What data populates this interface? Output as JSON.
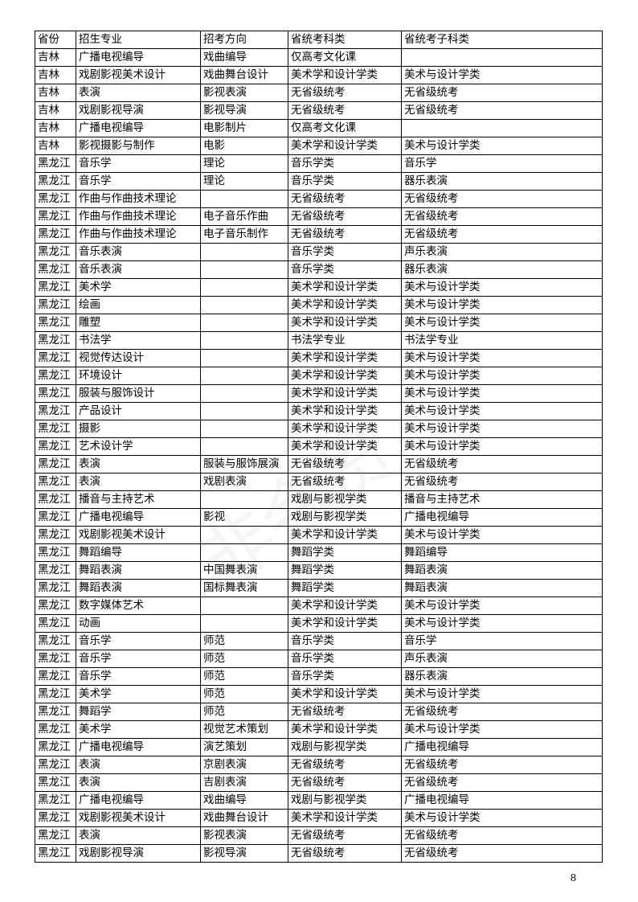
{
  "header": [
    "省份",
    "招生专业",
    "招考方向",
    "省统考科类",
    "省统考子科类"
  ],
  "rows": [
    [
      "吉林",
      "广播电视编导",
      "戏曲编导",
      "仅高考文化课",
      ""
    ],
    [
      "吉林",
      "戏剧影视美术设计",
      "戏曲舞台设计",
      "美术学和设计学类",
      "美术与设计学类"
    ],
    [
      "吉林",
      "表演",
      "影视表演",
      "无省级统考",
      "无省级统考"
    ],
    [
      "吉林",
      "戏剧影视导演",
      "影视导演",
      "无省级统考",
      "无省级统考"
    ],
    [
      "吉林",
      "广播电视编导",
      "电影制片",
      "仅高考文化课",
      ""
    ],
    [
      "吉林",
      "影视摄影与制作",
      "电影",
      "美术学和设计学类",
      "美术与设计学类"
    ],
    [
      "黑龙江",
      "音乐学",
      "理论",
      "音乐学类",
      "音乐学"
    ],
    [
      "黑龙江",
      "音乐学",
      "理论",
      "音乐学类",
      "器乐表演"
    ],
    [
      "黑龙江",
      "作曲与作曲技术理论",
      "",
      "无省级统考",
      "无省级统考"
    ],
    [
      "黑龙江",
      "作曲与作曲技术理论",
      "电子音乐作曲",
      "无省级统考",
      "无省级统考"
    ],
    [
      "黑龙江",
      "作曲与作曲技术理论",
      "电子音乐制作",
      "无省级统考",
      "无省级统考"
    ],
    [
      "黑龙江",
      "音乐表演",
      "",
      "音乐学类",
      "声乐表演"
    ],
    [
      "黑龙江",
      "音乐表演",
      "",
      "音乐学类",
      "器乐表演"
    ],
    [
      "黑龙江",
      "美术学",
      "",
      "美术学和设计学类",
      "美术与设计学类"
    ],
    [
      "黑龙江",
      "绘画",
      "",
      "美术学和设计学类",
      "美术与设计学类"
    ],
    [
      "黑龙江",
      "雕塑",
      "",
      "美术学和设计学类",
      "美术与设计学类"
    ],
    [
      "黑龙江",
      "书法学",
      "",
      "书法学专业",
      "书法学专业"
    ],
    [
      "黑龙江",
      "视觉传达设计",
      "",
      "美术学和设计学类",
      "美术与设计学类"
    ],
    [
      "黑龙江",
      "环境设计",
      "",
      "美术学和设计学类",
      "美术与设计学类"
    ],
    [
      "黑龙江",
      "服装与服饰设计",
      "",
      "美术学和设计学类",
      "美术与设计学类"
    ],
    [
      "黑龙江",
      "产品设计",
      "",
      "美术学和设计学类",
      "美术与设计学类"
    ],
    [
      "黑龙江",
      "摄影",
      "",
      "美术学和设计学类",
      "美术与设计学类"
    ],
    [
      "黑龙江",
      "艺术设计学",
      "",
      "美术学和设计学类",
      "美术与设计学类"
    ],
    [
      "黑龙江",
      "表演",
      "服装与服饰展演",
      "无省级统考",
      "无省级统考"
    ],
    [
      "黑龙江",
      "表演",
      "戏剧表演",
      "无省级统考",
      "无省级统考"
    ],
    [
      "黑龙江",
      "播音与主持艺术",
      "",
      "戏剧与影视学类",
      "播音与主持艺术"
    ],
    [
      "黑龙江",
      "广播电视编导",
      "影视",
      "戏剧与影视学类",
      "广播电视编导"
    ],
    [
      "黑龙江",
      "戏剧影视美术设计",
      "",
      "美术学和设计学类",
      "美术与设计学类"
    ],
    [
      "黑龙江",
      "舞蹈编导",
      "",
      "舞蹈学类",
      "舞蹈编导"
    ],
    [
      "黑龙江",
      "舞蹈表演",
      "中国舞表演",
      "舞蹈学类",
      "舞蹈表演"
    ],
    [
      "黑龙江",
      "舞蹈表演",
      "国标舞表演",
      "舞蹈学类",
      "舞蹈表演"
    ],
    [
      "黑龙江",
      "数字媒体艺术",
      "",
      "美术学和设计学类",
      "美术与设计学类"
    ],
    [
      "黑龙江",
      "动画",
      "",
      "美术学和设计学类",
      "美术与设计学类"
    ],
    [
      "黑龙江",
      "音乐学",
      "师范",
      "音乐学类",
      "音乐学"
    ],
    [
      "黑龙江",
      "音乐学",
      "师范",
      "音乐学类",
      "声乐表演"
    ],
    [
      "黑龙江",
      "音乐学",
      "师范",
      "音乐学类",
      "器乐表演"
    ],
    [
      "黑龙江",
      "美术学",
      "师范",
      "美术学和设计学类",
      "美术与设计学类"
    ],
    [
      "黑龙江",
      "舞蹈学",
      "师范",
      "无省级统考",
      "无省级统考"
    ],
    [
      "黑龙江",
      "美术学",
      "视觉艺术策划",
      "美术学和设计学类",
      "美术与设计学类"
    ],
    [
      "黑龙江",
      "广播电视编导",
      "演艺策划",
      "戏剧与影视学类",
      "广播电视编导"
    ],
    [
      "黑龙江",
      "表演",
      "京剧表演",
      "无省级统考",
      "无省级统考"
    ],
    [
      "黑龙江",
      "表演",
      "吉剧表演",
      "无省级统考",
      "无省级统考"
    ],
    [
      "黑龙江",
      "广播电视编导",
      "戏曲编导",
      "戏剧与影视学类",
      "广播电视编导"
    ],
    [
      "黑龙江",
      "戏剧影视美术设计",
      "戏曲舞台设计",
      "美术学和设计学类",
      "美术与设计学类"
    ],
    [
      "黑龙江",
      "表演",
      "影视表演",
      "无省级统考",
      "无省级统考"
    ],
    [
      "黑龙江",
      "戏剧影视导演",
      "影视导演",
      "无省级统考",
      "无省级统考"
    ]
  ],
  "page_number": "8"
}
